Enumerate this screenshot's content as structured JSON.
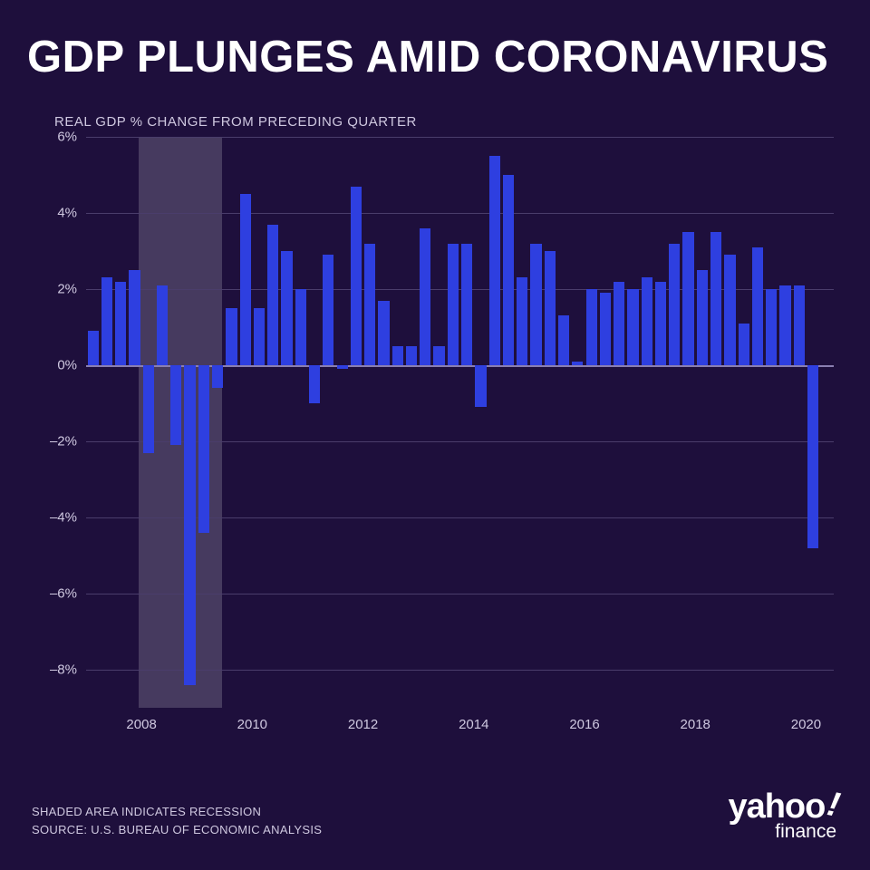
{
  "title": "GDP PLUNGES AMID CORONAVIRUS",
  "subtitle": "REAL GDP % CHANGE FROM PRECEDING QUARTER",
  "footnote_line1": "SHADED AREA INDICATES RECESSION",
  "footnote_line2": "SOURCE:  U.S. BUREAU OF ECONOMIC ANALYSIS",
  "logo_main": "yahoo",
  "logo_sub": "finance",
  "chart": {
    "type": "bar",
    "background_color": "#1e0f3c",
    "bar_color": "#2e3fe0",
    "grid_color": "#4a3d6b",
    "zero_line_color": "#8a7fb0",
    "text_color": "#cfc8e0",
    "recession_fill": "rgba(255,255,255,0.18)",
    "ylim": [
      -9,
      6
    ],
    "yticks": [
      -8,
      -6,
      -4,
      -2,
      0,
      2,
      4,
      6
    ],
    "ytick_labels": [
      "–8%",
      "–6%",
      "–4%",
      "–2%",
      "0%",
      "2%",
      "4%",
      "6%"
    ],
    "xlim": [
      2007.0,
      2020.5
    ],
    "xticks": [
      2008,
      2010,
      2012,
      2014,
      2016,
      2018,
      2020
    ],
    "xtick_labels": [
      "2008",
      "2010",
      "2012",
      "2014",
      "2016",
      "2018",
      "2020"
    ],
    "bar_width_years": 0.2,
    "recession_span": [
      2007.95,
      2009.45
    ],
    "title_fontsize": 49,
    "subtitle_fontsize": 15,
    "axis_fontsize": 15,
    "data": [
      {
        "x": 2007.125,
        "v": 0.9
      },
      {
        "x": 2007.375,
        "v": 2.3
      },
      {
        "x": 2007.625,
        "v": 2.2
      },
      {
        "x": 2007.875,
        "v": 2.5
      },
      {
        "x": 2008.125,
        "v": -2.3
      },
      {
        "x": 2008.375,
        "v": 2.1
      },
      {
        "x": 2008.625,
        "v": -2.1
      },
      {
        "x": 2008.875,
        "v": -8.4
      },
      {
        "x": 2009.125,
        "v": -4.4
      },
      {
        "x": 2009.375,
        "v": -0.6
      },
      {
        "x": 2009.625,
        "v": 1.5
      },
      {
        "x": 2009.875,
        "v": 4.5
      },
      {
        "x": 2010.125,
        "v": 1.5
      },
      {
        "x": 2010.375,
        "v": 3.7
      },
      {
        "x": 2010.625,
        "v": 3.0
      },
      {
        "x": 2010.875,
        "v": 2.0
      },
      {
        "x": 2011.125,
        "v": -1.0
      },
      {
        "x": 2011.375,
        "v": 2.9
      },
      {
        "x": 2011.625,
        "v": -0.1
      },
      {
        "x": 2011.875,
        "v": 4.7
      },
      {
        "x": 2012.125,
        "v": 3.2
      },
      {
        "x": 2012.375,
        "v": 1.7
      },
      {
        "x": 2012.625,
        "v": 0.5
      },
      {
        "x": 2012.875,
        "v": 0.5
      },
      {
        "x": 2013.125,
        "v": 3.6
      },
      {
        "x": 2013.375,
        "v": 0.5
      },
      {
        "x": 2013.625,
        "v": 3.2
      },
      {
        "x": 2013.875,
        "v": 3.2
      },
      {
        "x": 2014.125,
        "v": -1.1
      },
      {
        "x": 2014.375,
        "v": 5.5
      },
      {
        "x": 2014.625,
        "v": 5.0
      },
      {
        "x": 2014.875,
        "v": 2.3
      },
      {
        "x": 2015.125,
        "v": 3.2
      },
      {
        "x": 2015.375,
        "v": 3.0
      },
      {
        "x": 2015.625,
        "v": 1.3
      },
      {
        "x": 2015.875,
        "v": 0.1
      },
      {
        "x": 2016.125,
        "v": 2.0
      },
      {
        "x": 2016.375,
        "v": 1.9
      },
      {
        "x": 2016.625,
        "v": 2.2
      },
      {
        "x": 2016.875,
        "v": 2.0
      },
      {
        "x": 2017.125,
        "v": 2.3
      },
      {
        "x": 2017.375,
        "v": 2.2
      },
      {
        "x": 2017.625,
        "v": 3.2
      },
      {
        "x": 2017.875,
        "v": 3.5
      },
      {
        "x": 2018.125,
        "v": 2.5
      },
      {
        "x": 2018.375,
        "v": 3.5
      },
      {
        "x": 2018.625,
        "v": 2.9
      },
      {
        "x": 2018.875,
        "v": 1.1
      },
      {
        "x": 2019.125,
        "v": 3.1
      },
      {
        "x": 2019.375,
        "v": 2.0
      },
      {
        "x": 2019.625,
        "v": 2.1
      },
      {
        "x": 2019.875,
        "v": 2.1
      },
      {
        "x": 2020.125,
        "v": -4.8
      }
    ]
  }
}
